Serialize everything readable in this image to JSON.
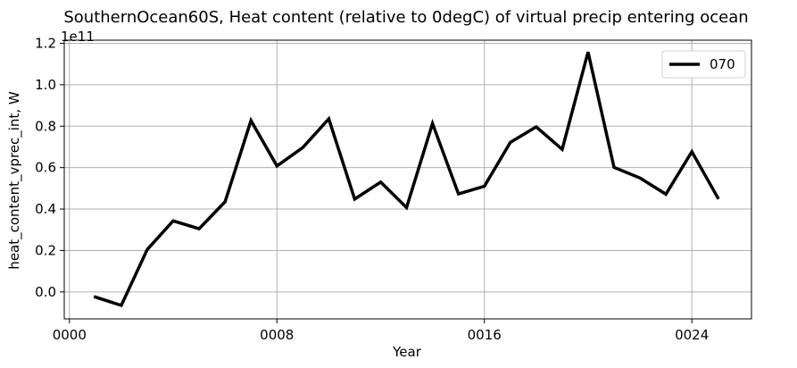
{
  "chart_data": {
    "type": "line",
    "title": "SouthernOcean60S, Heat content (relative to 0degC) of virtual precip entering ocean",
    "xlabel": "Year",
    "ylabel": "heat_content_vprec_int, W",
    "y_offset_label": "1e11",
    "y_scale": 100000000000.0,
    "xlim": [
      -0.2,
      26.3
    ],
    "ylim": [
      -0.13,
      1.215
    ],
    "x_ticks": [
      {
        "value": 0,
        "label": "0000"
      },
      {
        "value": 8,
        "label": "0008"
      },
      {
        "value": 16,
        "label": "0016"
      },
      {
        "value": 24,
        "label": "0024"
      }
    ],
    "y_ticks": [
      {
        "value": 0.0,
        "label": "0.0"
      },
      {
        "value": 0.2,
        "label": "0.2"
      },
      {
        "value": 0.4,
        "label": "0.4"
      },
      {
        "value": 0.6,
        "label": "0.6"
      },
      {
        "value": 0.8,
        "label": "0.8"
      },
      {
        "value": 1.0,
        "label": "1.0"
      },
      {
        "value": 1.2,
        "label": "1.2"
      }
    ],
    "grid": true,
    "legend_position": "top-right",
    "series": [
      {
        "name": "070",
        "color": "#000000",
        "x": [
          1,
          2,
          3,
          4,
          5,
          6,
          7,
          8,
          9,
          10,
          11,
          12,
          13,
          14,
          15,
          16,
          17,
          18,
          19,
          20,
          21,
          22,
          23,
          24,
          25
        ],
        "values": [
          -0.025,
          -0.065,
          0.205,
          0.343,
          0.305,
          0.435,
          0.827,
          0.608,
          0.697,
          0.835,
          0.448,
          0.53,
          0.407,
          0.813,
          0.473,
          0.51,
          0.722,
          0.797,
          0.688,
          1.158,
          0.601,
          0.55,
          0.472,
          0.677,
          0.455
        ]
      }
    ]
  }
}
